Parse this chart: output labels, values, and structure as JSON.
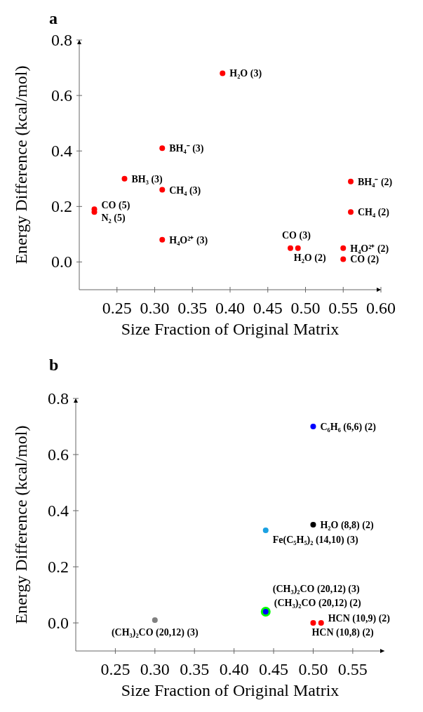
{
  "chart_data": [
    {
      "type": "scatter",
      "title": "a",
      "xlabel": "Size Fraction of Original Matrix",
      "ylabel": "Energy Difference (kcal/mol)",
      "xlim": [
        0.2,
        0.6
      ],
      "ylim": [
        -0.1,
        0.8
      ],
      "xticks": [
        0.25,
        {
          "value": 0.3,
          "label": "0.30"
        },
        0.35,
        {
          "value": 0.4,
          "label": "0.40"
        },
        0.45,
        {
          "value": 0.5,
          "label": "0.50"
        },
        0.55,
        {
          "value": 0.6,
          "label": "0.60"
        }
      ],
      "yticks": [
        {
          "value": 0,
          "label": "0.0"
        },
        0.2,
        0.4,
        0.6,
        0.8
      ],
      "marker": "circle",
      "series": [
        {
          "name": "H₂O (3)",
          "color": "#ff0000",
          "x": [
            0.39
          ],
          "values": [
            0.68
          ]
        },
        {
          "name": "BH₄⁻ (3)",
          "color": "#ff0000",
          "x": [
            0.31
          ],
          "values": [
            0.41
          ]
        },
        {
          "name": "BH₃ (3)",
          "color": "#ff0000",
          "x": [
            0.26
          ],
          "values": [
            0.3
          ]
        },
        {
          "name": "CH₄ (3)",
          "color": "#ff0000",
          "x": [
            0.31
          ],
          "values": [
            0.26
          ]
        },
        {
          "name": "CO (5)",
          "color": "#ff0000",
          "x": [
            0.22
          ],
          "values": [
            0.19
          ]
        },
        {
          "name": "N₂ (5)",
          "color": "#ff0000",
          "x": [
            0.22
          ],
          "values": [
            0.18
          ]
        },
        {
          "name": "H₄O²⁺ (3)",
          "color": "#ff0000",
          "x": [
            0.31
          ],
          "values": [
            0.08
          ]
        },
        {
          "name": "CO (3)",
          "color": "#ff0000",
          "x": [
            0.48
          ],
          "values": [
            0.05
          ]
        },
        {
          "name": "H₂O (2)",
          "color": "#ff0000",
          "x": [
            0.49
          ],
          "values": [
            0.05
          ]
        },
        {
          "name": "BH₄⁻ (2)",
          "color": "#ff0000",
          "x": [
            0.56
          ],
          "values": [
            0.29
          ]
        },
        {
          "name": "CH₄ (2)",
          "color": "#ff0000",
          "x": [
            0.56
          ],
          "values": [
            0.18
          ]
        },
        {
          "name": "H₄O²⁺ (2)",
          "color": "#ff0000",
          "x": [
            0.55
          ],
          "values": [
            0.05
          ]
        },
        {
          "name": "CO (2)",
          "color": "#ff0000",
          "x": [
            0.55
          ],
          "values": [
            0.01
          ]
        }
      ]
    },
    {
      "type": "bubble",
      "title": "b",
      "xlabel": "Size Fraction of Original Matrix",
      "ylabel": "Energy Difference (kcal/mol)",
      "xlim": [
        0.2,
        0.59
      ],
      "ylim": [
        -0.1,
        0.8
      ],
      "xticks": [
        0.25,
        {
          "value": 0.3,
          "label": "0.30"
        },
        0.35,
        {
          "value": 0.4,
          "label": "0.40"
        },
        0.45,
        {
          "value": 0.5,
          "label": "0.50"
        },
        0.55
      ],
      "yticks": [
        {
          "value": 0,
          "label": "0.0"
        },
        0.2,
        0.4,
        0.6,
        0.8
      ],
      "marker": "circle",
      "series": [
        {
          "name": "C₆H₆ (6,6) (2)",
          "color": "#0000ff",
          "x": [
            0.5
          ],
          "values": [
            0.7
          ],
          "sizes": [
            0.33
          ]
        },
        {
          "name": "H₂O (8,8) (2)",
          "color": "#000000",
          "x": [
            0.5
          ],
          "values": [
            0.35
          ],
          "sizes": [
            0.33
          ]
        },
        {
          "name": "Fe(C₅H₅)₂ (14,10) (3)",
          "color": "#1ba1e2",
          "x": [
            0.44
          ],
          "values": [
            0.33
          ],
          "sizes": [
            0.33
          ]
        },
        {
          "name": "(CH₃)₂CO (20,12) (3)",
          "color": "#00ff00",
          "x": [
            0.44
          ],
          "values": [
            0.04
          ],
          "sizes": [
            1
          ]
        },
        {
          "name": "(CH₃)₂CO (20,12) (2)",
          "color": "#0000ff",
          "x": [
            0.44
          ],
          "values": [
            0.04
          ],
          "sizes": [
            0.33
          ]
        },
        {
          "name": "HCN (10,9) (2)",
          "color": "#ff0000",
          "x": [
            0.51
          ],
          "values": [
            0.0
          ],
          "sizes": [
            0.33
          ]
        },
        {
          "name": "HCN (10,8) (2)",
          "color": "#ff0000",
          "x": [
            0.5
          ],
          "values": [
            0.0
          ],
          "sizes": [
            0.33
          ]
        },
        {
          "name": "(CH₃)₂CO (20,12) (3)",
          "color": "#808080",
          "x": [
            0.3
          ],
          "values": [
            0.01
          ],
          "sizes": [
            0.33
          ]
        }
      ]
    }
  ]
}
